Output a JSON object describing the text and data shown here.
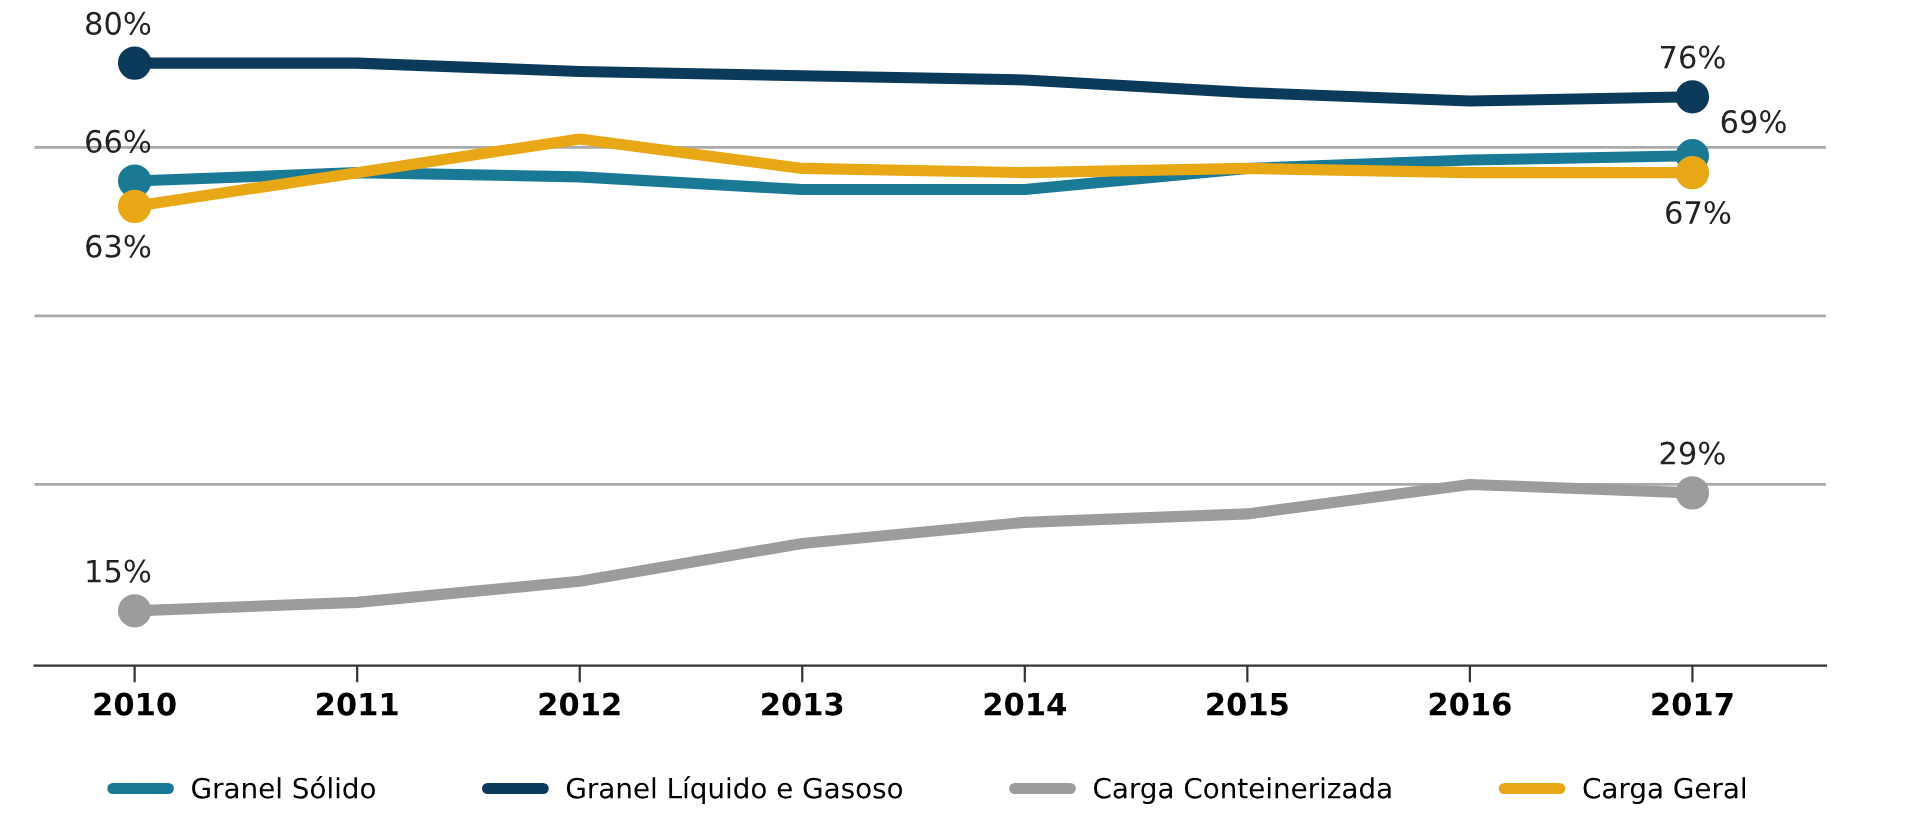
{
  "chart_data": {
    "type": "line",
    "categories": [
      "2010",
      "2011",
      "2012",
      "2013",
      "2014",
      "2015",
      "2016",
      "2017"
    ],
    "yticks": [
      {
        "value": 30,
        "label": null
      },
      {
        "value": 50,
        "label": null
      },
      {
        "value": 70,
        "label": null
      }
    ],
    "grid": "y",
    "tick_labels": "x",
    "legend": "bottom",
    "series": [
      {
        "name": "Granel Sólido",
        "color": "#1a7a96",
        "values": [
          66,
          67,
          66.5,
          65,
          65,
          67.5,
          68.5,
          69
        ],
        "value_labels": [
          "66%",
          null,
          null,
          null,
          null,
          null,
          null,
          "69%"
        ]
      },
      {
        "name": "Granel Líquido e Gasoso",
        "color": "#0b3a5b",
        "values": [
          80,
          80,
          79,
          78.5,
          78,
          76.5,
          75.5,
          76
        ],
        "value_labels": [
          "80%",
          null,
          null,
          null,
          null,
          null,
          null,
          "76%"
        ]
      },
      {
        "name": "Carga Conteinerizada",
        "color": "#9c9c9e",
        "values": [
          15,
          16,
          18.5,
          23,
          25.5,
          26.5,
          30,
          29
        ],
        "value_labels": [
          "15%",
          null,
          null,
          null,
          null,
          null,
          null,
          "29%"
        ]
      },
      {
        "name": "Carga Geral",
        "color": "#e8a815",
        "values": [
          63,
          67,
          71,
          67.5,
          67,
          67.5,
          67,
          67
        ],
        "value_labels": [
          "63%",
          null,
          null,
          null,
          null,
          null,
          null,
          "67%"
        ]
      }
    ]
  }
}
